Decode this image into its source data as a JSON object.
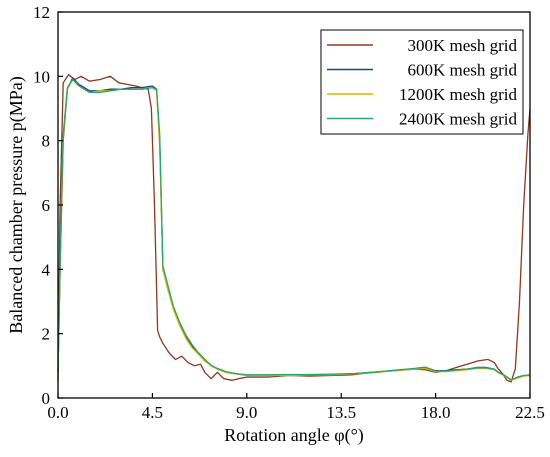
{
  "chart_data": {
    "type": "line",
    "title": "",
    "xlabel": "Rotation angle φ(°)",
    "ylabel": "Balanced chamber pressure p(MPa)",
    "xlim": [
      0.0,
      22.5
    ],
    "ylim": [
      0,
      12
    ],
    "xticks": [
      "0.0",
      "4.5",
      "9.0",
      "13.5",
      "18.0",
      "22.5"
    ],
    "yticks": [
      "0",
      "2",
      "4",
      "6",
      "8",
      "10",
      "12"
    ],
    "grid": false,
    "legend_position": "top-right",
    "series": [
      {
        "name": "300K mesh grid",
        "color": "#8b3a1e",
        "x": [
          0.0,
          0.1,
          0.25,
          0.5,
          0.8,
          1.1,
          1.5,
          2.0,
          2.5,
          2.9,
          3.3,
          3.7,
          4.0,
          4.3,
          4.45,
          4.6,
          4.75,
          4.85,
          5.0,
          5.3,
          5.6,
          5.9,
          6.2,
          6.5,
          6.8,
          7.0,
          7.3,
          7.6,
          7.9,
          8.3,
          8.6,
          9.0,
          9.5,
          10.0,
          11.0,
          12.0,
          13.0,
          14.0,
          15.0,
          16.0,
          17.0,
          17.5,
          18.0,
          18.5,
          19.0,
          19.5,
          20.0,
          20.5,
          20.8,
          21.0,
          21.2,
          21.4,
          21.6,
          21.8,
          22.0,
          22.2,
          22.4,
          22.5
        ],
        "y": [
          0.5,
          6.0,
          9.8,
          10.05,
          9.9,
          10.0,
          9.85,
          9.9,
          10.0,
          9.8,
          9.75,
          9.7,
          9.65,
          9.6,
          9.0,
          6.0,
          2.1,
          1.9,
          1.7,
          1.4,
          1.2,
          1.3,
          1.1,
          1.0,
          1.05,
          0.8,
          0.6,
          0.8,
          0.6,
          0.55,
          0.6,
          0.65,
          0.65,
          0.65,
          0.7,
          0.68,
          0.7,
          0.72,
          0.8,
          0.85,
          0.9,
          0.88,
          0.8,
          0.85,
          0.95,
          1.05,
          1.15,
          1.2,
          1.1,
          0.9,
          0.75,
          0.55,
          0.5,
          0.9,
          3.0,
          6.0,
          8.2,
          9.0
        ]
      },
      {
        "name": "600K mesh grid",
        "color": "#1f3f8f",
        "x": [
          0.0,
          0.1,
          0.25,
          0.45,
          0.7,
          1.0,
          1.5,
          2.0,
          2.5,
          3.0,
          3.5,
          4.0,
          4.5,
          4.7,
          4.85,
          5.0,
          5.2,
          5.5,
          5.8,
          6.1,
          6.4,
          6.7,
          7.0,
          7.3,
          7.6,
          8.0,
          8.5,
          9.0,
          10.0,
          11.0,
          12.0,
          13.0,
          14.0,
          15.0,
          16.0,
          17.0,
          17.5,
          18.0,
          18.5,
          19.0,
          19.5,
          20.0,
          20.4,
          20.8,
          21.0,
          21.3,
          21.6,
          21.9,
          22.2,
          22.5
        ],
        "y": [
          0.8,
          4.0,
          8.0,
          9.6,
          9.95,
          9.75,
          9.55,
          9.55,
          9.6,
          9.6,
          9.65,
          9.65,
          9.7,
          9.6,
          8.0,
          4.0,
          3.5,
          2.8,
          2.3,
          1.9,
          1.6,
          1.4,
          1.2,
          1.0,
          0.9,
          0.8,
          0.75,
          0.7,
          0.7,
          0.72,
          0.72,
          0.72,
          0.75,
          0.8,
          0.85,
          0.9,
          0.95,
          0.85,
          0.85,
          0.88,
          0.9,
          0.95,
          0.95,
          0.9,
          0.8,
          0.7,
          0.55,
          0.65,
          0.7,
          0.7
        ]
      },
      {
        "name": "1200K mesh grid",
        "color": "#d9b600",
        "x": [
          0.0,
          0.1,
          0.25,
          0.45,
          0.7,
          1.0,
          1.5,
          2.0,
          2.5,
          3.0,
          3.5,
          4.0,
          4.5,
          4.7,
          4.85,
          5.0,
          5.2,
          5.5,
          5.8,
          6.1,
          6.4,
          6.7,
          7.0,
          7.3,
          7.6,
          8.0,
          8.5,
          9.0,
          10.0,
          11.0,
          12.0,
          13.0,
          14.0,
          15.0,
          16.0,
          17.0,
          17.5,
          18.0,
          18.5,
          19.0,
          19.5,
          20.0,
          20.4,
          20.8,
          21.0,
          21.3,
          21.6,
          21.9,
          22.2,
          22.5
        ],
        "y": [
          0.8,
          4.1,
          8.1,
          9.6,
          9.9,
          9.7,
          9.5,
          9.55,
          9.55,
          9.6,
          9.6,
          9.6,
          9.65,
          9.55,
          7.8,
          4.0,
          3.45,
          2.75,
          2.25,
          1.85,
          1.55,
          1.35,
          1.15,
          1.0,
          0.9,
          0.8,
          0.75,
          0.7,
          0.7,
          0.7,
          0.72,
          0.72,
          0.75,
          0.78,
          0.85,
          0.9,
          0.92,
          0.82,
          0.82,
          0.85,
          0.88,
          0.92,
          0.92,
          0.88,
          0.78,
          0.68,
          0.55,
          0.62,
          0.68,
          0.7
        ]
      },
      {
        "name": "2400K mesh grid",
        "color": "#2aa66a",
        "x": [
          0.0,
          0.1,
          0.25,
          0.45,
          0.7,
          1.0,
          1.5,
          2.0,
          2.5,
          3.0,
          3.5,
          4.0,
          4.5,
          4.7,
          4.85,
          5.0,
          5.2,
          5.5,
          5.8,
          6.1,
          6.4,
          6.7,
          7.0,
          7.3,
          7.6,
          8.0,
          8.5,
          9.0,
          10.0,
          11.0,
          12.0,
          13.0,
          14.0,
          15.0,
          16.0,
          17.0,
          17.5,
          18.0,
          18.5,
          19.0,
          19.5,
          20.0,
          20.4,
          20.8,
          21.0,
          21.3,
          21.6,
          21.9,
          22.2,
          22.5
        ],
        "y": [
          0.8,
          4.2,
          8.2,
          9.65,
          9.9,
          9.7,
          9.5,
          9.5,
          9.55,
          9.6,
          9.6,
          9.6,
          9.65,
          9.6,
          8.2,
          4.1,
          3.6,
          2.85,
          2.35,
          1.95,
          1.65,
          1.4,
          1.2,
          1.02,
          0.92,
          0.82,
          0.76,
          0.72,
          0.72,
          0.73,
          0.73,
          0.74,
          0.76,
          0.8,
          0.86,
          0.92,
          0.96,
          0.84,
          0.84,
          0.87,
          0.9,
          0.94,
          0.94,
          0.9,
          0.8,
          0.7,
          0.57,
          0.64,
          0.7,
          0.72
        ]
      }
    ]
  }
}
